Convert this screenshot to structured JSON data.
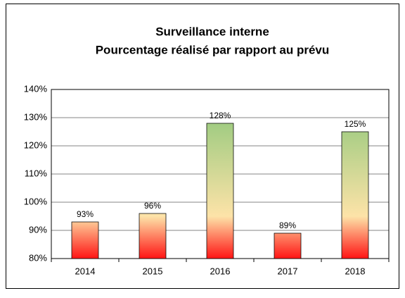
{
  "chart_data": {
    "type": "bar",
    "title": [
      "Surveillance interne",
      "Pourcentage réalisé par rapport au prévu"
    ],
    "categories": [
      "2014",
      "2015",
      "2016",
      "2017",
      "2018"
    ],
    "values": [
      93,
      96,
      128,
      89,
      125
    ],
    "value_labels": [
      "93%",
      "96%",
      "128%",
      "89%",
      "125%"
    ],
    "gradient": [
      "#ff1414",
      "#fde3a8",
      "#8ec77a"
    ],
    "ylim": [
      80,
      140
    ],
    "yticks": [
      {
        "value": 80,
        "label": "80%"
      },
      {
        "value": 90,
        "label": "90%"
      },
      {
        "value": 100,
        "label": "100%"
      },
      {
        "value": 110,
        "label": "110%"
      },
      {
        "value": 120,
        "label": "120%"
      },
      {
        "value": 130,
        "label": "130%"
      },
      {
        "value": 140,
        "label": "140%"
      }
    ],
    "grid": true
  }
}
